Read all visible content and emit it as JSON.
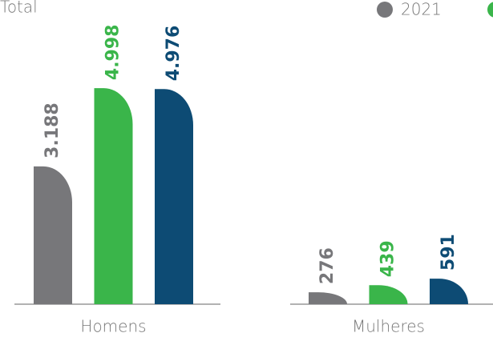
{
  "chart_data": {
    "type": "bar",
    "title": "Total",
    "categories": [
      "Homens",
      "Mulheres"
    ],
    "series": [
      {
        "name": "2021",
        "color": "#77777a",
        "values": [
          3188,
          276
        ],
        "value_labels": [
          "3.188",
          "276"
        ]
      },
      {
        "color": "#3ab54a",
        "values": [
          4998,
          439
        ],
        "value_labels": [
          "4.998",
          "439"
        ]
      },
      {
        "color": "#0d4b74",
        "values": [
          4976,
          591
        ],
        "value_labels": [
          "4.976",
          "591"
        ]
      }
    ]
  }
}
